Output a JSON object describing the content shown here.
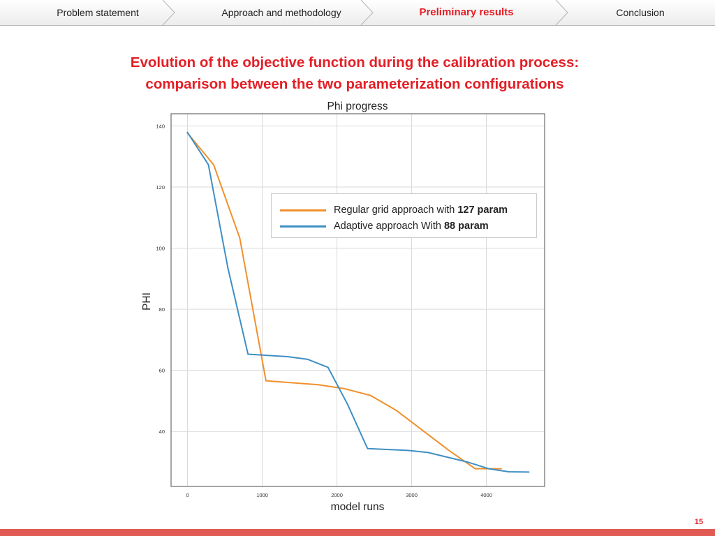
{
  "nav": {
    "tabs": [
      {
        "label": "Problem statement",
        "active": false
      },
      {
        "label": "Approach and methodology",
        "active": false
      },
      {
        "label": "Preliminary results",
        "active": true
      },
      {
        "label": "Conclusion",
        "active": false
      }
    ]
  },
  "headline": {
    "line1": "Evolution of the objective function during the calibration process:",
    "line2": "comparison between the two parameterization configurations"
  },
  "colors": {
    "accent": "#e31f26",
    "footer_bar": "#e15b55",
    "series_orange": "#f0902c",
    "series_blue": "#3f8fc4"
  },
  "chart_data": {
    "type": "line",
    "title": "Phi progress",
    "xlabel": "model runs",
    "ylabel": "PHI",
    "xlim": [
      -220,
      4780
    ],
    "ylim": [
      22,
      144
    ],
    "xticks": [
      "0",
      "1000",
      "2000",
      "3000",
      "4000"
    ],
    "yticks": [
      "40",
      "60",
      "80",
      "100",
      "120",
      "140"
    ],
    "grid": true,
    "legend": {
      "placement": "upper-right"
    },
    "series": [
      {
        "name": "Regular grid approach with 127 param",
        "name_plain": "Regular grid approach with ",
        "name_bold": "127 param",
        "color": "#f0902c",
        "x": [
          0,
          350,
          700,
          1050,
          1750,
          2100,
          2450,
          2800,
          3150,
          3500,
          3850,
          4200
        ],
        "y": [
          137.7,
          127.3,
          103.3,
          56.6,
          55.3,
          54.0,
          51.8,
          46.8,
          40.3,
          33.8,
          27.8,
          27.8
        ]
      },
      {
        "name": "Adaptive approach With 88 param",
        "name_plain": "Adaptive approach With ",
        "name_bold": "88 param",
        "color": "#3f8fc4",
        "x": [
          0,
          280,
          540,
          810,
          1340,
          1610,
          1880,
          2140,
          2410,
          2950,
          3220,
          3760,
          4030,
          4300,
          4570
        ],
        "y": [
          137.9,
          127.3,
          93.6,
          65.3,
          64.5,
          63.6,
          61.0,
          49.0,
          34.4,
          33.8,
          33.1,
          29.9,
          27.8,
          26.8,
          26.7
        ]
      }
    ]
  },
  "page_number": "15"
}
